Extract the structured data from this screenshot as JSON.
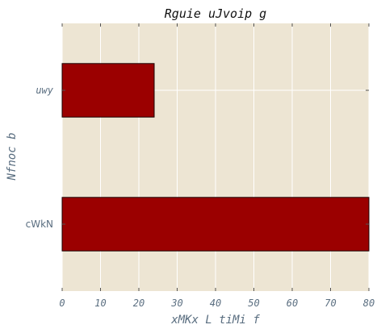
{
  "chart_data": {
    "type": "bar",
    "orientation": "horizontal",
    "title": "Rguie uJvoip g",
    "xlabel": "xMKx L tiMi f",
    "ylabel": "Nfnoc b",
    "categories": [
      "cWkN",
      "uwy"
    ],
    "values": [
      80,
      24
    ],
    "xlim": [
      0,
      80
    ],
    "xticks": [
      0,
      10,
      20,
      30,
      40,
      50,
      60,
      70,
      80
    ],
    "grid": true,
    "colors": {
      "bar": "#9b0000",
      "bar_edge": "#1a0000",
      "plot_background": "#ede5d3",
      "grid": "#ffffff",
      "text": "#5a6e80"
    }
  }
}
